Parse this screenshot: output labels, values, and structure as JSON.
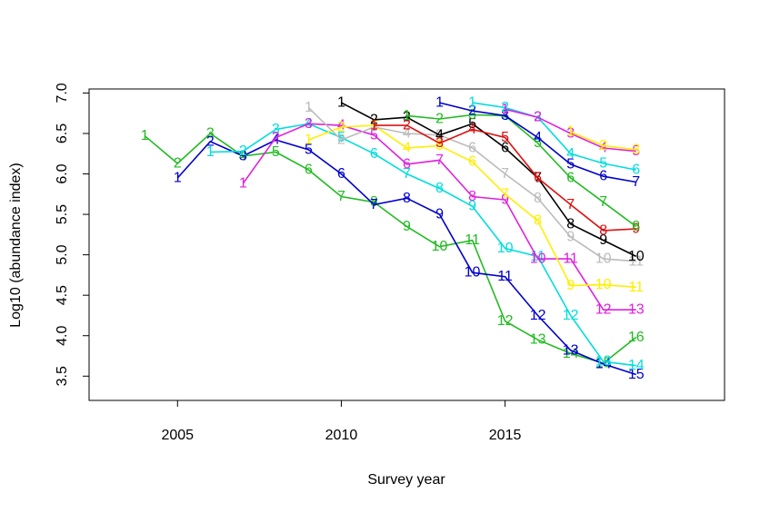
{
  "chart_data": {
    "type": "line",
    "title": "",
    "xlabel": "Survey year",
    "ylabel": "Log10 (abundance index)",
    "xlim": [
      2002.3,
      2021.7
    ],
    "ylim": [
      3.2,
      7.05
    ],
    "x_ticks": [
      2005,
      2010,
      2015
    ],
    "y_ticks": [
      3.5,
      4.0,
      4.5,
      5.0,
      5.5,
      6.0,
      6.5,
      7.0
    ],
    "x_tick_labels": [
      "2005",
      "2010",
      "2015"
    ],
    "y_tick_labels": [
      "3.5",
      "4.0",
      "4.5",
      "5.0",
      "5.5",
      "6.0",
      "6.5",
      "7.0"
    ],
    "grid": false,
    "legend": "none",
    "point_labels": "age index (1..16)",
    "series": [
      {
        "color": "#22bb22",
        "points": [
          [
            2004,
            6.47
          ],
          [
            2005,
            6.13
          ],
          [
            2006,
            6.5
          ],
          [
            2007,
            6.22
          ],
          [
            2008,
            6.27
          ],
          [
            2009,
            6.05
          ],
          [
            2010,
            5.72
          ],
          [
            2011,
            5.65
          ],
          [
            2012,
            5.35
          ],
          [
            2013,
            5.1
          ],
          [
            2014,
            5.18
          ],
          [
            2015,
            4.18
          ],
          [
            2016,
            3.95
          ],
          [
            2017,
            3.78
          ],
          [
            2018,
            3.66
          ],
          [
            2019,
            3.98
          ]
        ]
      },
      {
        "color": "#0000cc",
        "points": [
          [
            2005,
            5.95
          ],
          [
            2006,
            6.4
          ],
          [
            2007,
            6.22
          ],
          [
            2008,
            6.42
          ],
          [
            2009,
            6.3
          ],
          [
            2010,
            6.0
          ],
          [
            2011,
            5.62
          ],
          [
            2012,
            5.7
          ],
          [
            2013,
            5.5
          ],
          [
            2014,
            4.78
          ],
          [
            2015,
            4.73
          ],
          [
            2016,
            4.25
          ],
          [
            2017,
            3.82
          ],
          [
            2018,
            3.65
          ],
          [
            2019,
            3.52
          ]
        ]
      },
      {
        "color": "#00dddd",
        "points": [
          [
            2006,
            6.27
          ],
          [
            2007,
            6.28
          ],
          [
            2008,
            6.55
          ],
          [
            2009,
            6.62
          ],
          [
            2010,
            6.45
          ],
          [
            2011,
            6.25
          ],
          [
            2012,
            6.0
          ],
          [
            2013,
            5.82
          ],
          [
            2014,
            5.6
          ],
          [
            2015,
            5.08
          ],
          [
            2016,
            4.98
          ],
          [
            2017,
            4.25
          ],
          [
            2018,
            3.68
          ],
          [
            2019,
            3.63
          ]
        ]
      },
      {
        "color": "#dd22dd",
        "points": [
          [
            2007,
            5.88
          ],
          [
            2008,
            6.45
          ],
          [
            2009,
            6.62
          ],
          [
            2010,
            6.6
          ],
          [
            2011,
            6.48
          ],
          [
            2012,
            6.12
          ],
          [
            2013,
            6.17
          ],
          [
            2014,
            5.72
          ],
          [
            2015,
            5.68
          ],
          [
            2016,
            4.95
          ],
          [
            2017,
            4.95
          ],
          [
            2018,
            4.32
          ],
          [
            2019,
            4.32
          ]
        ]
      },
      {
        "color": "#ffee00",
        "points": [
          [
            2009,
            6.42
          ],
          [
            2010,
            6.58
          ],
          [
            2011,
            6.6
          ],
          [
            2012,
            6.32
          ],
          [
            2013,
            6.35
          ],
          [
            2014,
            6.15
          ],
          [
            2015,
            5.75
          ],
          [
            2016,
            5.42
          ],
          [
            2017,
            4.62
          ],
          [
            2018,
            4.63
          ],
          [
            2019,
            4.6
          ]
        ]
      },
      {
        "color": "#bbbbbb",
        "points": [
          [
            2009,
            6.82
          ],
          [
            2010,
            6.42
          ],
          [
            2011,
            6.58
          ],
          [
            2012,
            6.5
          ],
          [
            2013,
            6.48
          ],
          [
            2014,
            6.32
          ],
          [
            2015,
            6.0
          ],
          [
            2016,
            5.7
          ],
          [
            2017,
            5.22
          ],
          [
            2018,
            4.95
          ],
          [
            2019,
            4.92
          ]
        ]
      },
      {
        "color": "#000000",
        "points": [
          [
            2010,
            6.88
          ],
          [
            2011,
            6.67
          ],
          [
            2012,
            6.7
          ],
          [
            2013,
            6.48
          ],
          [
            2014,
            6.62
          ],
          [
            2015,
            6.32
          ],
          [
            2016,
            5.95
          ],
          [
            2017,
            5.38
          ],
          [
            2018,
            5.18
          ],
          [
            2019,
            4.98
          ]
        ]
      },
      {
        "color": "#dd1111",
        "points": [
          [
            2011,
            6.6
          ],
          [
            2012,
            6.6
          ],
          [
            2013,
            6.38
          ],
          [
            2014,
            6.55
          ],
          [
            2015,
            6.45
          ],
          [
            2016,
            5.95
          ],
          [
            2017,
            5.62
          ],
          [
            2018,
            5.3
          ],
          [
            2019,
            5.32
          ]
        ]
      },
      {
        "color": "#22bb22",
        "points": [
          [
            2012,
            6.72
          ],
          [
            2013,
            6.68
          ],
          [
            2014,
            6.73
          ],
          [
            2015,
            6.72
          ],
          [
            2016,
            6.38
          ],
          [
            2017,
            5.95
          ],
          [
            2018,
            5.65
          ],
          [
            2019,
            5.35
          ]
        ]
      },
      {
        "color": "#0000cc",
        "points": [
          [
            2013,
            6.88
          ],
          [
            2014,
            6.78
          ],
          [
            2015,
            6.72
          ],
          [
            2016,
            6.45
          ],
          [
            2017,
            6.12
          ],
          [
            2018,
            5.97
          ],
          [
            2019,
            5.9
          ]
        ]
      },
      {
        "color": "#00dddd",
        "points": [
          [
            2014,
            6.88
          ],
          [
            2015,
            6.82
          ],
          [
            2016,
            6.7
          ],
          [
            2017,
            6.25
          ],
          [
            2018,
            6.13
          ],
          [
            2019,
            6.05
          ]
        ]
      },
      {
        "color": "#dd22dd",
        "points": [
          [
            2015,
            6.8
          ],
          [
            2016,
            6.7
          ],
          [
            2017,
            6.5
          ],
          [
            2018,
            6.32
          ],
          [
            2019,
            6.28
          ]
        ]
      },
      {
        "color": "#ffee00",
        "points": [
          [
            2017,
            6.52
          ],
          [
            2018,
            6.35
          ],
          [
            2019,
            6.3
          ]
        ]
      }
    ]
  }
}
